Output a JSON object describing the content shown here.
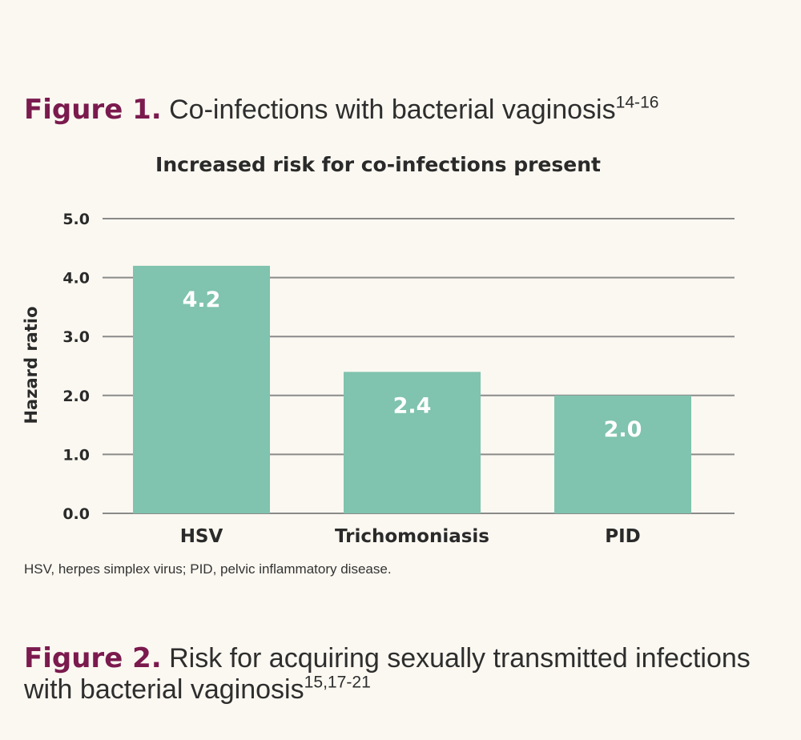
{
  "figure1": {
    "label": "Figure 1.",
    "title": "Co-infections with bacterial vaginosis",
    "ref": "14-16",
    "footnote": "HSV, herpes simplex virus; PID, pelvic inflammatory disease."
  },
  "figure2": {
    "label": "Figure 2.",
    "title": "Risk for acquiring sexually transmitted infections with bacterial vaginosis",
    "ref": "15,17-21"
  },
  "chart_data": {
    "type": "bar",
    "title": "Increased risk for co-infections present",
    "xlabel": "",
    "ylabel": "Hazard ratio",
    "categories": [
      "HSV",
      "Trichomoniasis",
      "PID"
    ],
    "values": [
      4.2,
      2.4,
      2.0
    ],
    "data_labels": [
      "4.2",
      "2.4",
      "2.0"
    ],
    "yticks": [
      "0.0",
      "1.0",
      "2.0",
      "3.0",
      "4.0",
      "5.0"
    ],
    "ylim": [
      0,
      5
    ],
    "grid": true,
    "legend": "none",
    "bar_color": "#80c3ae",
    "data_label_color": "#ffffff",
    "grid_color": "#8a8a8a"
  }
}
